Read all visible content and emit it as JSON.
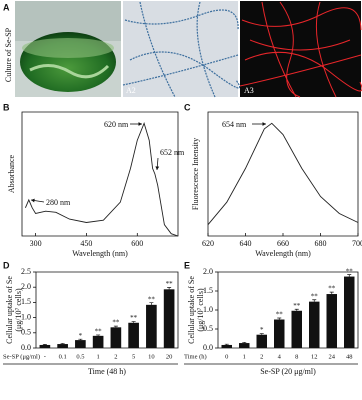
{
  "panel_a": {
    "label": "A",
    "ylabel": "Culture of Se-SP",
    "image_labels": [
      "A2",
      "A3"
    ]
  },
  "chart_data": [
    {
      "type": "line",
      "panel_label": "B",
      "xlabel": "Wavelength (nm)",
      "ylabel": "Absorbance",
      "x": [
        270,
        280,
        290,
        300,
        330,
        360,
        400,
        450,
        500,
        550,
        580,
        600,
        620,
        635,
        645,
        652,
        660,
        680,
        700,
        720
      ],
      "values": [
        0.25,
        0.32,
        0.25,
        0.2,
        0.22,
        0.21,
        0.15,
        0.12,
        0.14,
        0.3,
        0.6,
        0.85,
        1.0,
        0.85,
        0.6,
        0.55,
        0.45,
        0.1,
        0.02,
        0.0
      ],
      "color": "#222222",
      "xlim": [
        260,
        720
      ],
      "xticks": [
        300,
        450,
        600
      ],
      "ylim": [
        0,
        1.1
      ],
      "annotations": [
        "620 nm",
        "652 nm",
        "280 nm"
      ]
    },
    {
      "type": "line",
      "panel_label": "C",
      "xlabel": "Wavelength (nm)",
      "ylabel": "Fluorescence Intensity",
      "x": [
        620,
        630,
        640,
        650,
        654,
        660,
        670,
        680,
        690,
        700
      ],
      "values": [
        0.1,
        0.3,
        0.6,
        0.95,
        1.0,
        0.9,
        0.6,
        0.35,
        0.2,
        0.12
      ],
      "color": "#222222",
      "xlim": [
        620,
        700
      ],
      "xticks": [
        620,
        640,
        660,
        680,
        700
      ],
      "ylim": [
        0,
        1.1
      ],
      "annotations": [
        "654 nm"
      ]
    },
    {
      "type": "bar",
      "panel_label": "D",
      "ylabel": "Cellular uptake of Se",
      "ylabel_unit": "(μg/10⁷ cells)",
      "row_label": "Se-SP (μg/ml)",
      "xlabel": "Time (48 h)",
      "categories": [
        "-",
        "0.1",
        "0.5",
        "1",
        "2",
        "5",
        "10",
        "20"
      ],
      "values": [
        0.1,
        0.13,
        0.26,
        0.4,
        0.68,
        0.83,
        1.42,
        1.93
      ],
      "errors": [
        0.02,
        0.02,
        0.03,
        0.03,
        0.04,
        0.04,
        0.07,
        0.06
      ],
      "significance": [
        null,
        null,
        "*",
        "**",
        "**",
        "**",
        "**",
        "**"
      ],
      "color": "#111111",
      "ylim": [
        0,
        2.5
      ],
      "yticks": [
        {
          "value": 0,
          "label": "0.0"
        },
        0.5,
        {
          "value": 1,
          "label": "1.0"
        },
        1.5,
        {
          "value": 2,
          "label": "2.0"
        },
        2.5
      ]
    },
    {
      "type": "bar",
      "panel_label": "E",
      "ylabel": "Cellular uptake of Se",
      "ylabel_unit": "(μg/10⁷ cells)",
      "row_label": "Time (h)",
      "xlabel": "Se-SP (20 μg/ml)",
      "categories": [
        "0",
        "1",
        "2",
        "4",
        "8",
        "12",
        "24",
        "48"
      ],
      "values": [
        0.08,
        0.13,
        0.35,
        0.75,
        0.98,
        1.22,
        1.42,
        1.88
      ],
      "errors": [
        0.02,
        0.02,
        0.03,
        0.04,
        0.04,
        0.05,
        0.05,
        0.05
      ],
      "significance": [
        null,
        null,
        "*",
        "**",
        "**",
        "**",
        "**",
        "**"
      ],
      "color": "#111111",
      "ylim": [
        0,
        2.0
      ],
      "yticks": [
        {
          "value": 0,
          "label": "0.0"
        },
        0.5,
        {
          "value": 1,
          "label": "1.0"
        },
        1.5,
        {
          "value": 2,
          "label": "2.0"
        }
      ]
    }
  ]
}
